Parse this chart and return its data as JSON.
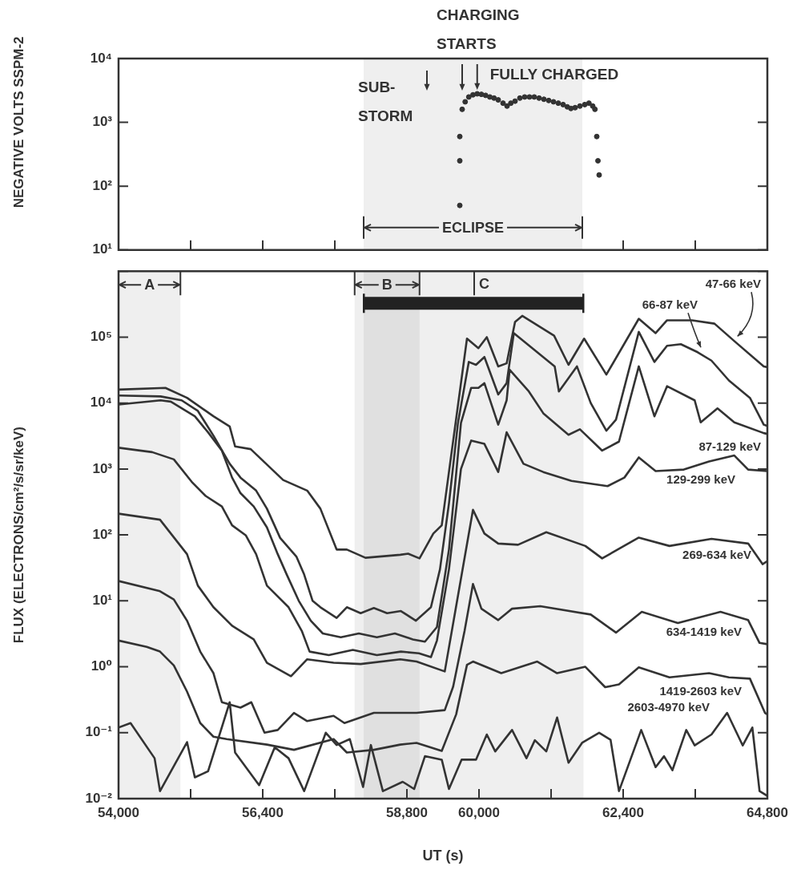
{
  "chart_data": [
    {
      "type": "scatter",
      "ylabel": "NEGATIVE VOLTS SSPM-2",
      "log": true,
      "grid": false,
      "legend": false,
      "marker": "circle",
      "tick_labels": "y",
      "xlim": [
        54000,
        64800
      ],
      "xticks": [
        {
          "value": 55200,
          "label": null
        },
        {
          "value": 56400,
          "label": null
        },
        {
          "value": 57600,
          "label": null
        },
        {
          "value": 62400,
          "label": null
        },
        {
          "value": 63600,
          "label": null
        }
      ],
      "ylim": [
        10,
        10000
      ],
      "yticks": [
        {
          "value": 10,
          "label": "10¹"
        },
        {
          "value": 100,
          "label": "10²"
        },
        {
          "value": 1000,
          "label": "10³"
        },
        {
          "value": 10000,
          "label": "10⁴"
        }
      ],
      "series": [
        {
          "color": "#333333",
          "x": [
            59680,
            59680,
            59680,
            59720,
            59770,
            59830,
            59900,
            59970,
            60040,
            60110,
            60180,
            60250,
            60320,
            60400,
            60467,
            60530,
            60600,
            60680,
            60760,
            60840,
            60920,
            61000,
            61080,
            61160,
            61240,
            61320,
            61400,
            61470,
            61530,
            61600,
            61680,
            61760,
            61830,
            61893,
            61930,
            61960,
            61980,
            62000
          ],
          "values": [
            50,
            250,
            600,
            1600,
            2100,
            2500,
            2700,
            2800,
            2750,
            2650,
            2500,
            2400,
            2250,
            2000,
            1800,
            2000,
            2150,
            2400,
            2500,
            2500,
            2500,
            2400,
            2300,
            2200,
            2100,
            2000,
            1900,
            1750,
            1650,
            1700,
            1800,
            1900,
            2000,
            1800,
            1600,
            600,
            250,
            150
          ]
        }
      ],
      "bands": [
        {
          "axis": "x",
          "from": 58080,
          "to": 61720,
          "label": "ECLIPSE",
          "color": "#222222"
        }
      ],
      "annotations": [
        "SUB-\nSTORM",
        "CHARGING\nSTARTS",
        {
          "text": "FULLY CHARGED",
          "x": 59970,
          "y": 2800
        }
      ]
    },
    {
      "type": "line",
      "xlabel": "UT (s)",
      "ylabel": "FLUX (ELECTRONS/cm²/s/sr/keV)",
      "log": true,
      "grid": false,
      "legend": false,
      "marker": "none",
      "xlim": [
        54000,
        64800
      ],
      "xticks": [
        {
          "value": 54000,
          "label": "54,000"
        },
        {
          "value": 55200,
          "label": null
        },
        {
          "value": 56400,
          "label": "56,400"
        },
        {
          "value": 57600,
          "label": null
        },
        {
          "value": 58800,
          "label": "58,800"
        },
        {
          "value": 60000,
          "label": "60,000"
        },
        {
          "value": 61200,
          "label": null
        },
        {
          "value": 62400,
          "label": "62,400"
        },
        {
          "value": 63600,
          "label": null
        },
        {
          "value": 64800,
          "label": "64,800"
        }
      ],
      "ylim": [
        0.01,
        1000000
      ],
      "yticks": [
        {
          "value": 0.01,
          "label": "10⁻²"
        },
        {
          "value": 0.1,
          "label": "10⁻¹"
        },
        {
          "value": 1,
          "label": "10⁰"
        },
        {
          "value": 10,
          "label": "10¹"
        },
        {
          "value": 100,
          "label": "10²"
        },
        {
          "value": 1000,
          "label": "10³"
        },
        {
          "value": 10000,
          "label": "10⁴"
        },
        {
          "value": 100000,
          "label": "10⁵"
        },
        {
          "value": 1000000,
          "label": null
        }
      ],
      "bands": [
        {
          "axis": "x",
          "from": 54000,
          "to": 55030,
          "label": "A",
          "color": "#222222"
        },
        {
          "axis": "x",
          "from": 57930,
          "to": 59010,
          "label": "B",
          "color": "#222222"
        },
        {
          "axis": "x",
          "from": 58080,
          "to": 61740,
          "color": "#222222"
        }
      ],
      "ref_lines": [
        {
          "axis": "x",
          "value": 59920,
          "label": "C"
        }
      ],
      "series": [
        {
          "name": "47-66 keV",
          "color": "#333333",
          "x": [
            54000,
            54780,
            55140,
            55580,
            55850,
            55940,
            56200,
            56740,
            57140,
            57360,
            57630,
            57800,
            58110,
            58690,
            58820,
            59010,
            59240,
            59380,
            59800,
            59990,
            60130,
            60320,
            60460,
            60600,
            60720,
            61250,
            61490,
            61750,
            62120,
            62660,
            62940,
            63130,
            63550,
            63920,
            64250,
            64740,
            64800
          ],
          "values": [
            16000,
            17000,
            12000,
            6300,
            4400,
            2200,
            2000,
            680,
            470,
            250,
            60,
            60,
            45,
            50,
            52,
            44,
            105,
            140,
            95000,
            68000,
            100000,
            36000,
            40000,
            170000,
            210000,
            105000,
            38000,
            95000,
            27000,
            190000,
            115000,
            180000,
            180000,
            160000,
            87000,
            36000,
            35000
          ]
        },
        {
          "name": "66-87 keV",
          "color": "#333333",
          "x": [
            54000,
            54700,
            55050,
            55320,
            55580,
            55850,
            56030,
            56290,
            56470,
            56690,
            56960,
            57090,
            57230,
            57360,
            57630,
            57800,
            58030,
            58250,
            58470,
            58700,
            58950,
            59200,
            59350,
            59500,
            59650,
            59830,
            59950,
            60090,
            60320,
            60460,
            60580,
            61260,
            61330,
            61630,
            61860,
            62120,
            62280,
            62660,
            62920,
            63130,
            63360,
            63640,
            63870,
            64160,
            64510,
            64740,
            64800
          ],
          "values": [
            13000,
            12600,
            11000,
            7600,
            3200,
            1200,
            740,
            470,
            250,
            90,
            47,
            25,
            10,
            8,
            5.5,
            8,
            6.5,
            7.8,
            6.5,
            7,
            5,
            8,
            30,
            300,
            5000,
            42000,
            38000,
            50000,
            13500,
            20000,
            115000,
            36000,
            15000,
            36000,
            10000,
            3800,
            5600,
            120000,
            42000,
            74000,
            78000,
            59000,
            44000,
            22000,
            12000,
            4700,
            4500
          ]
        },
        {
          "name": "87-129 keV",
          "color": "#333333",
          "x": [
            54000,
            54700,
            54870,
            55270,
            55490,
            55720,
            55890,
            56030,
            56250,
            56470,
            56650,
            56800,
            57000,
            57200,
            57400,
            57700,
            58000,
            58300,
            58600,
            58900,
            59100,
            59300,
            59500,
            59700,
            59870,
            59990,
            60090,
            60320,
            60460,
            60510,
            60830,
            61070,
            61490,
            61680,
            62050,
            62330,
            62660,
            62920,
            63130,
            63590,
            63690,
            63970,
            64250,
            64740,
            64800
          ],
          "values": [
            9500,
            11000,
            10500,
            6300,
            3600,
            1900,
            740,
            430,
            270,
            130,
            51,
            25,
            10,
            5,
            3.2,
            2.8,
            3.2,
            2.8,
            3.2,
            2.6,
            2.4,
            4,
            60,
            5000,
            17000,
            17000,
            20000,
            4700,
            11000,
            32000,
            15000,
            7000,
            3300,
            4000,
            1900,
            2600,
            36000,
            6300,
            18000,
            11000,
            5100,
            8300,
            5100,
            3500,
            3400
          ]
        },
        {
          "name": "129-299 keV",
          "color": "#333333",
          "x": [
            54000,
            54560,
            54920,
            55230,
            55450,
            55720,
            55890,
            56120,
            56290,
            56470,
            56830,
            57050,
            57180,
            57500,
            57900,
            58300,
            58700,
            59000,
            59200,
            59300,
            59500,
            59700,
            59870,
            60090,
            60320,
            60460,
            60740,
            61070,
            61540,
            62140,
            62420,
            62660,
            62940,
            63410,
            63830,
            64250,
            64480,
            64800
          ],
          "values": [
            2100,
            1800,
            1400,
            620,
            390,
            270,
            140,
            98,
            51,
            17,
            8,
            3.5,
            1.7,
            1.5,
            1.8,
            1.5,
            1.7,
            1.6,
            1.4,
            2.5,
            30,
            1000,
            2700,
            2400,
            900,
            3600,
            1200,
            900,
            660,
            550,
            740,
            1500,
            930,
            980,
            1300,
            1600,
            980,
            930
          ]
        },
        {
          "name": "269-634 keV",
          "color": "#333333",
          "x": [
            54000,
            54690,
            55140,
            55320,
            55580,
            55890,
            56250,
            56470,
            56870,
            57140,
            57580,
            58030,
            58690,
            58960,
            59430,
            59900,
            60090,
            60320,
            60650,
            61120,
            61770,
            62050,
            62660,
            63170,
            63870,
            64480,
            64720,
            64800
          ],
          "values": [
            210,
            170,
            51,
            17,
            8,
            4.2,
            2.6,
            1.15,
            0.72,
            1.3,
            1.15,
            1.1,
            1.3,
            1.2,
            0.85,
            240,
            105,
            74,
            71,
            110,
            68,
            44,
            91,
            68,
            87,
            74,
            36,
            40
          ]
        },
        {
          "name": "634-1419 keV",
          "color": "#333333",
          "x": [
            54000,
            54690,
            54920,
            55140,
            55360,
            55580,
            55720,
            56030,
            56210,
            56430,
            56650,
            56920,
            57140,
            57580,
            57760,
            58250,
            58690,
            58960,
            59430,
            59570,
            59760,
            59900,
            60040,
            60320,
            60550,
            61020,
            61860,
            62280,
            62710,
            63310,
            64020,
            64480,
            64670,
            64800
          ],
          "values": [
            20,
            14,
            10.5,
            5,
            1.7,
            0.8,
            0.29,
            0.24,
            0.29,
            0.1,
            0.11,
            0.2,
            0.15,
            0.18,
            0.14,
            0.2,
            0.2,
            0.2,
            0.22,
            0.5,
            3.5,
            18,
            7.6,
            5.1,
            7.6,
            8.3,
            6.2,
            3.3,
            6.8,
            4.6,
            6.8,
            5.1,
            2.3,
            2.2
          ]
        },
        {
          "name": "1419-2603 keV",
          "color": "#333333",
          "x": [
            54000,
            54470,
            54690,
            54920,
            55140,
            55360,
            55580,
            55800,
            56470,
            56920,
            57580,
            57800,
            58250,
            58690,
            58960,
            59380,
            59620,
            59800,
            59900,
            60370,
            60970,
            61300,
            61770,
            62100,
            62330,
            62660,
            63170,
            63830,
            64160,
            64510,
            64760,
            64800
          ],
          "values": [
            2.5,
            2,
            1.7,
            1.05,
            0.42,
            0.14,
            0.087,
            0.08,
            0.066,
            0.055,
            0.08,
            0.05,
            0.055,
            0.066,
            0.07,
            0.053,
            0.19,
            1.07,
            1.2,
            0.8,
            1.2,
            0.8,
            1,
            0.49,
            0.54,
            0.98,
            0.69,
            0.8,
            0.69,
            0.66,
            0.2,
            0.19
          ]
        },
        {
          "name": "2603-4970 keV",
          "color": "#333333",
          "x": [
            54000,
            54200,
            54600,
            54690,
            55140,
            55270,
            55490,
            55850,
            55940,
            56340,
            56600,
            56830,
            57090,
            57450,
            57630,
            57850,
            58070,
            58200,
            58400,
            58730,
            58920,
            59100,
            59380,
            59500,
            59710,
            59950,
            60130,
            60270,
            60550,
            60790,
            60930,
            61120,
            61300,
            61490,
            61720,
            62000,
            62190,
            62330,
            62700,
            62940,
            63080,
            63220,
            63450,
            63590,
            63870,
            64130,
            64390,
            64550,
            64670,
            64800
          ],
          "values": [
            0.12,
            0.14,
            0.041,
            0.013,
            0.072,
            0.021,
            0.026,
            0.29,
            0.05,
            0.016,
            0.06,
            0.041,
            0.013,
            0.1,
            0.065,
            0.08,
            0.015,
            0.065,
            0.013,
            0.018,
            0.014,
            0.044,
            0.039,
            0.014,
            0.039,
            0.039,
            0.094,
            0.052,
            0.11,
            0.041,
            0.077,
            0.052,
            0.17,
            0.035,
            0.071,
            0.1,
            0.078,
            0.013,
            0.11,
            0.03,
            0.044,
            0.027,
            0.11,
            0.064,
            0.094,
            0.2,
            0.064,
            0.12,
            0.013,
            0.011
          ]
        }
      ]
    }
  ]
}
